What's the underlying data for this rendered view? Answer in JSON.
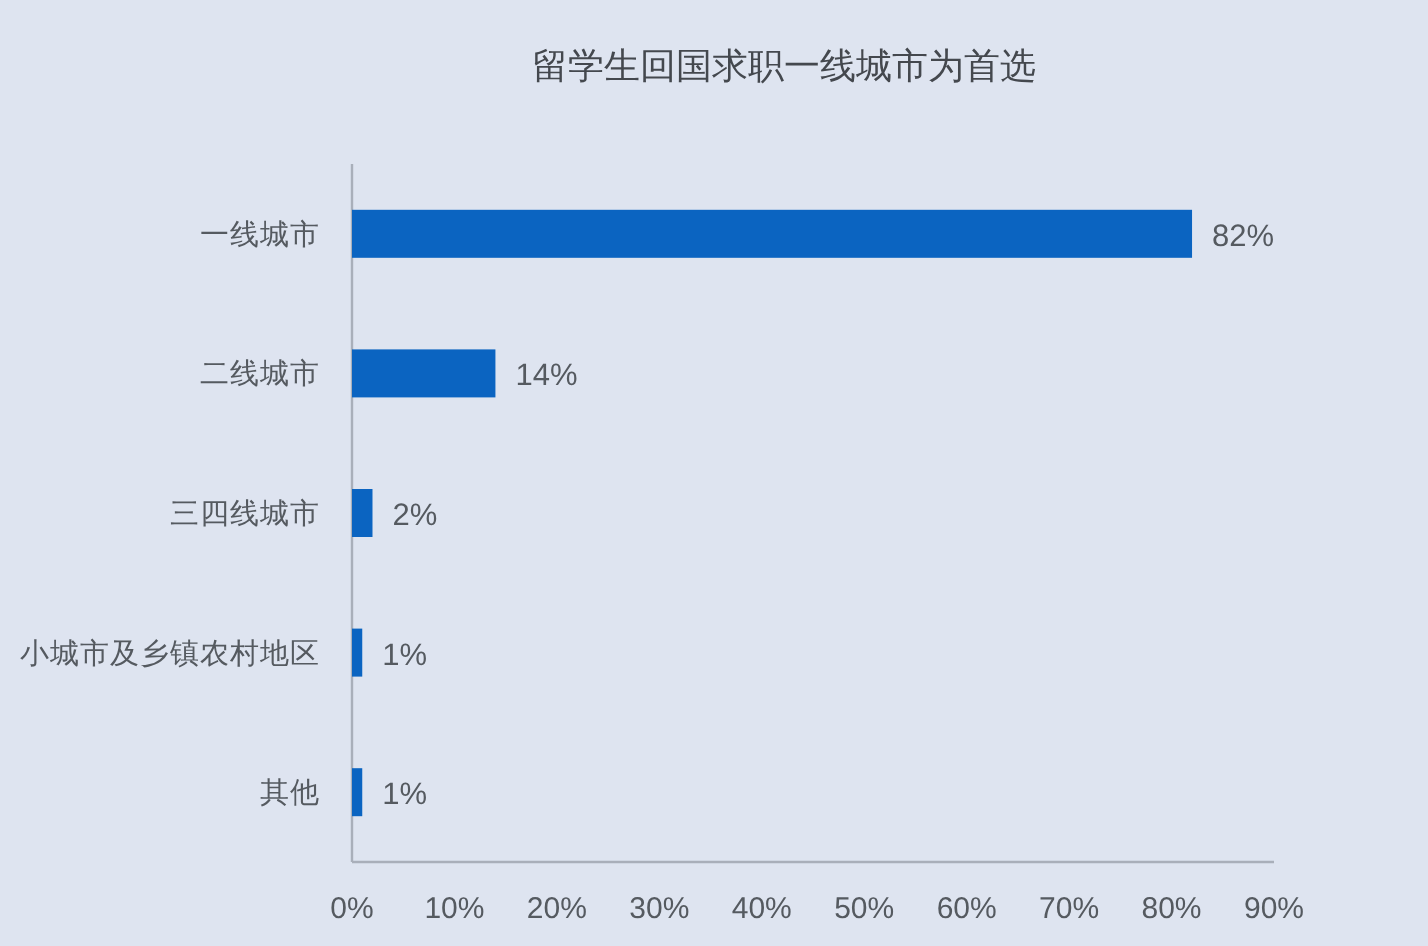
{
  "chart_data": {
    "type": "bar",
    "orientation": "horizontal",
    "title": "留学生回国求职一线城市为首选",
    "categories": [
      "一线城市",
      "二线城市",
      "三四线城市",
      "小城市及乡镇农村地区",
      "其他"
    ],
    "values": [
      82,
      14,
      2,
      1,
      1
    ],
    "value_labels": [
      "82%",
      "14%",
      "2%",
      "1%",
      "1%"
    ],
    "color": "#0b64c1",
    "xlim": [
      0,
      90
    ],
    "xticks": [
      {
        "value": 0,
        "label": "0%"
      },
      {
        "value": 10,
        "label": "10%"
      },
      {
        "value": 20,
        "label": "20%"
      },
      {
        "value": 30,
        "label": "30%"
      },
      {
        "value": 40,
        "label": "40%"
      },
      {
        "value": 50,
        "label": "50%"
      },
      {
        "value": 60,
        "label": "60%"
      },
      {
        "value": 70,
        "label": "70%"
      },
      {
        "value": 80,
        "label": "80%"
      },
      {
        "value": 90,
        "label": "90%"
      }
    ]
  }
}
